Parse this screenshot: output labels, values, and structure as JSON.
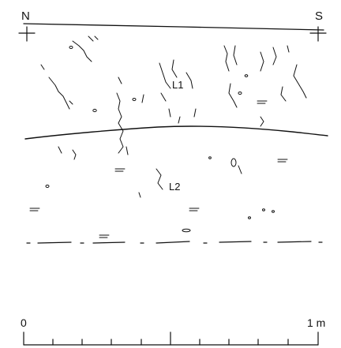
{
  "orientation": {
    "left_label": "N",
    "right_label": "S"
  },
  "layers": [
    {
      "id": "L1",
      "label": "L1"
    },
    {
      "id": "L2",
      "label": "L2"
    }
  ],
  "scale_bar": {
    "start_label": "0",
    "end_label": "1 m",
    "divisions": 10
  },
  "colors": {
    "ink": "#111111",
    "background": "#ffffff"
  }
}
